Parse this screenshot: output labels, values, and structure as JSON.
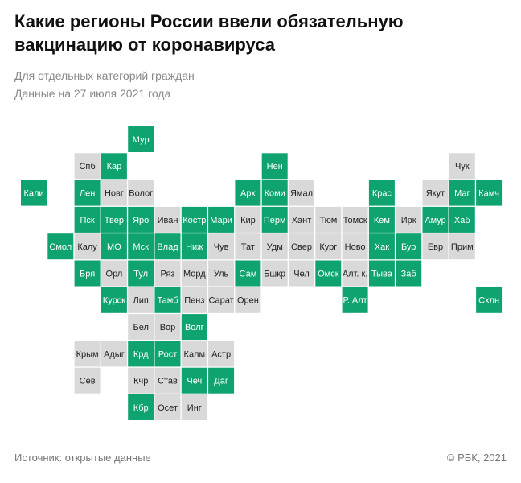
{
  "header": {
    "title": "Какие регионы России ввели обязательную вакцинацию от коронавируса",
    "subtitle": "Для отдельных категорий граждан",
    "date": "Данные на 27 июля 2021 года"
  },
  "colors": {
    "mandatory": "#0fa36f",
    "other": "#d9d9d9"
  },
  "tiles": [
    {
      "label": "Мур",
      "mandatory": true
    },
    {
      "label": "Спб",
      "mandatory": false
    },
    {
      "label": "Кар",
      "mandatory": true
    },
    {
      "label": "Нен",
      "mandatory": true
    },
    {
      "label": "Чук",
      "mandatory": false
    },
    {
      "label": "Кали",
      "mandatory": true
    },
    {
      "label": "Лен",
      "mandatory": true
    },
    {
      "label": "Новг",
      "mandatory": false
    },
    {
      "label": "Волог",
      "mandatory": false
    },
    {
      "label": "Арх",
      "mandatory": true
    },
    {
      "label": "Коми",
      "mandatory": true
    },
    {
      "label": "Ямал",
      "mandatory": false
    },
    {
      "label": "Крас",
      "mandatory": true
    },
    {
      "label": "Якут",
      "mandatory": false
    },
    {
      "label": "Маг",
      "mandatory": true
    },
    {
      "label": "Камч",
      "mandatory": true
    },
    {
      "label": "Пск",
      "mandatory": true
    },
    {
      "label": "Твер",
      "mandatory": true
    },
    {
      "label": "Яро",
      "mandatory": true
    },
    {
      "label": "Иван",
      "mandatory": false
    },
    {
      "label": "Костр",
      "mandatory": true
    },
    {
      "label": "Мари",
      "mandatory": true
    },
    {
      "label": "Кир",
      "mandatory": false
    },
    {
      "label": "Перм",
      "mandatory": true
    },
    {
      "label": "Хант",
      "mandatory": false
    },
    {
      "label": "Тюм",
      "mandatory": false
    },
    {
      "label": "Томск",
      "mandatory": false
    },
    {
      "label": "Кем",
      "mandatory": true
    },
    {
      "label": "Ирк",
      "mandatory": false
    },
    {
      "label": "Амур",
      "mandatory": true
    },
    {
      "label": "Хаб",
      "mandatory": true
    },
    {
      "label": "Смол",
      "mandatory": true
    },
    {
      "label": "Калу",
      "mandatory": false
    },
    {
      "label": "МО",
      "mandatory": true
    },
    {
      "label": "Мск",
      "mandatory": true
    },
    {
      "label": "Влад",
      "mandatory": true
    },
    {
      "label": "Ниж",
      "mandatory": true
    },
    {
      "label": "Чув",
      "mandatory": false
    },
    {
      "label": "Тат",
      "mandatory": false
    },
    {
      "label": "Удм",
      "mandatory": false
    },
    {
      "label": "Свер",
      "mandatory": false
    },
    {
      "label": "Кург",
      "mandatory": false
    },
    {
      "label": "Ново",
      "mandatory": false
    },
    {
      "label": "Хак",
      "mandatory": true
    },
    {
      "label": "Бур",
      "mandatory": true
    },
    {
      "label": "Евр",
      "mandatory": false
    },
    {
      "label": "Прим",
      "mandatory": false
    },
    {
      "label": "Бря",
      "mandatory": true
    },
    {
      "label": "Орл",
      "mandatory": false
    },
    {
      "label": "Тул",
      "mandatory": true
    },
    {
      "label": "Ряз",
      "mandatory": false
    },
    {
      "label": "Морд",
      "mandatory": false
    },
    {
      "label": "Уль",
      "mandatory": false
    },
    {
      "label": "Сам",
      "mandatory": true
    },
    {
      "label": "Бшкр",
      "mandatory": false
    },
    {
      "label": "Чел",
      "mandatory": false
    },
    {
      "label": "Омск",
      "mandatory": true
    },
    {
      "label": "Алт. к.",
      "mandatory": false
    },
    {
      "label": "Тыва",
      "mandatory": true
    },
    {
      "label": "Заб",
      "mandatory": true
    },
    {
      "label": "Курск",
      "mandatory": true
    },
    {
      "label": "Лип",
      "mandatory": false
    },
    {
      "label": "Тамб",
      "mandatory": true
    },
    {
      "label": "Пенз",
      "mandatory": false
    },
    {
      "label": "Сарат",
      "mandatory": false
    },
    {
      "label": "Орен",
      "mandatory": false
    },
    {
      "label": "Р. Алт",
      "mandatory": true
    },
    {
      "label": "Схлн",
      "mandatory": true
    },
    {
      "label": "Бел",
      "mandatory": false
    },
    {
      "label": "Вор",
      "mandatory": false
    },
    {
      "label": "Волг",
      "mandatory": true
    },
    {
      "label": "Крым",
      "mandatory": false
    },
    {
      "label": "Адыг",
      "mandatory": false
    },
    {
      "label": "Крд",
      "mandatory": true
    },
    {
      "label": "Рост",
      "mandatory": true
    },
    {
      "label": "Калм",
      "mandatory": false
    },
    {
      "label": "Астр",
      "mandatory": false
    },
    {
      "label": "Сев",
      "mandatory": false
    },
    {
      "label": "Кчр",
      "mandatory": false
    },
    {
      "label": "Став",
      "mandatory": false
    },
    {
      "label": "Чеч",
      "mandatory": true
    },
    {
      "label": "Даг",
      "mandatory": true
    },
    {
      "label": "Кбр",
      "mandatory": true
    },
    {
      "label": "Осет",
      "mandatory": false
    },
    {
      "label": "Инг",
      "mandatory": false
    }
  ],
  "footer": {
    "source": "Источник:  открытые данные",
    "copyright": "© РБК, 2021"
  }
}
